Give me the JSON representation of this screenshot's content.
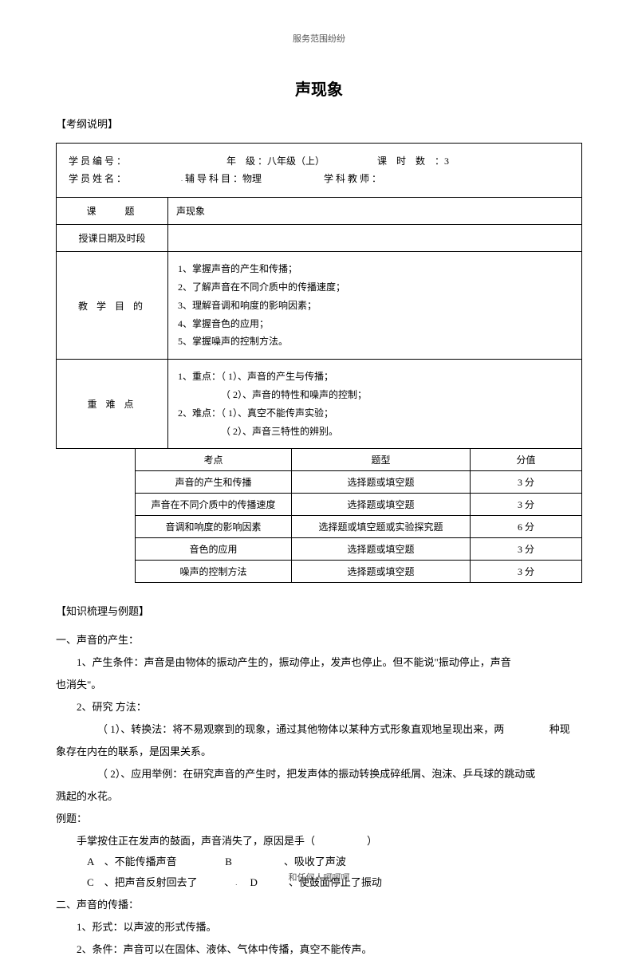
{
  "header": "服务范围纷纷",
  "title": "声现象",
  "section1_label": "【考纲说明】",
  "info": {
    "row1": {
      "l1": "学 员 编  号 ：",
      "l2": "年　级 ：八年级（上）",
      "l3": "课　时　数　：3"
    },
    "row2": {
      "l1": "学 员 姓  名 ：",
      "l2": "辅 导 科 目 ：物理",
      "l3": "学 科 教 师 ："
    },
    "topic_label": "课　　题",
    "topic_value": "声现象",
    "date_label": "授课日期及时段",
    "objectives_label": "教 学 目 的",
    "objectives": "1、掌握声音的产生和传播；\n2、了解声音在不同介质中的传播速度；\n3、理解音调和响度的影响因素；\n4、掌握音色的应用；\n5、掌握噪声的控制方法。",
    "keypoints_label": "重  难  点",
    "keypoints": "1、重点：（ 1）、声音的产生与传播；\n　　　　　（ 2）、声音的特性和噪声的控制；\n2、难点：（ 1）、真空不能传声实验；\n　　　　　（ 2）、声音三特性的辨别。"
  },
  "exam_table": {
    "headers": [
      "考点",
      "题型",
      "分值"
    ],
    "rows": [
      [
        "声音的产生和传播",
        "选择题或填空题",
        "3 分"
      ],
      [
        "声音在不同介质中的传播速度",
        "选择题或填空题",
        "3 分"
      ],
      [
        "音调和响度的影响因素",
        "选择题或填空题或实验探究题",
        "6 分"
      ],
      [
        "音色的应用",
        "选择题或填空题",
        "3 分"
      ],
      [
        "噪声的控制方法",
        "选择题或填空题",
        "3 分"
      ]
    ]
  },
  "section2_label": "【知识梳理与例题】",
  "content": {
    "h1": "一、声音的产生：",
    "p1": "1、产生条件：声音是由物体的振动产生的，振动停止，发声也停止。但不能说\"振动停止，声音",
    "p1b": "也消失\"。",
    "p2": "2、研究  方法：",
    "p3a": "（ 1）、转换法：将不易观察到的现象，通过其他物体以某种方式形象直观地呈现出来，两",
    "p3b": "种现",
    "p3c": "象存在内在的联系，是因果关系。",
    "p4": "（ 2）、应用举例：在研究声音的产生时，把发声体的振动转换成碎纸屑、泡沫、乒乓球的跳动或",
    "p4b": "溅起的水花。",
    "ex_label": "例题：",
    "ex_q": "手掌按住正在发声的鼓面，声音消失了，原因是手（　　　　　）",
    "ex_a": "A　、不能传播声音",
    "ex_b": "B　　　　　、吸收了声波",
    "ex_c": "C　、把声音反射回去了",
    "ex_d": "D　　　、使鼓面停止了振动",
    "h2": "二、声音的传播：",
    "p5": "1、形式：以声波的形式传播。",
    "p6": "2、条件：声音可以在固体、液体、气体中传播，真空不能传声。"
  },
  "footer": "和任何人呵呵呵"
}
